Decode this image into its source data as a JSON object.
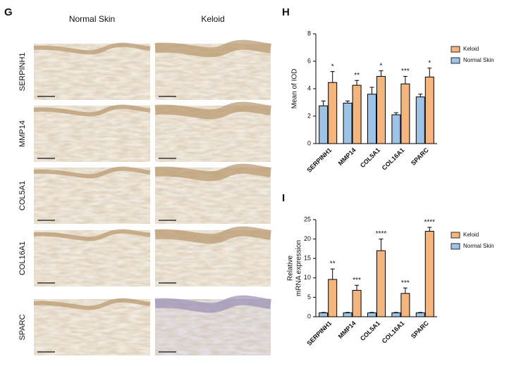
{
  "figure": {
    "panel_labels": [
      "G",
      "H",
      "I"
    ],
    "column_headers": [
      "Normal Skin",
      "Keloid"
    ],
    "row_labels": [
      "SERPINH1",
      "MMP14",
      "COL5A1",
      "COL16A1",
      "SPARC"
    ]
  },
  "chart_data": [
    {
      "type": "bar",
      "ylabel": [
        "Mean of IOD"
      ],
      "categories": [
        "SERPINH1",
        "MMP14",
        "COL5A1",
        "COL16A1",
        "SPARC"
      ],
      "series": [
        {
          "name": "Keloid",
          "color": "#f5b57e",
          "values": [
            4.45,
            4.25,
            4.9,
            4.35,
            4.85
          ],
          "errors": [
            0.8,
            0.35,
            0.4,
            0.55,
            0.65
          ]
        },
        {
          "name": "Normal Skin",
          "color": "#9dc3e6",
          "values": [
            2.75,
            2.95,
            3.6,
            2.1,
            3.4
          ],
          "errors": [
            0.35,
            0.15,
            0.5,
            0.15,
            0.2
          ]
        }
      ],
      "annotations": [
        "*",
        "**",
        "*",
        "***",
        "*"
      ],
      "ylim": [
        0,
        8
      ],
      "yticks": [
        0,
        2,
        4,
        6,
        8
      ]
    },
    {
      "type": "bar",
      "ylabel": [
        "Relative",
        "mRNA expression"
      ],
      "categories": [
        "SERPINH1",
        "MMP14",
        "COL5A1",
        "COL16A1",
        "SPARC"
      ],
      "series": [
        {
          "name": "Keloid",
          "color": "#f5b57e",
          "values": [
            9.6,
            6.8,
            17,
            6.0,
            22
          ],
          "errors": [
            2.7,
            1.3,
            3,
            1.4,
            1
          ]
        },
        {
          "name": "Normal Skin",
          "color": "#9dc3e6",
          "values": [
            1,
            1,
            1,
            1,
            1
          ],
          "errors": [
            0.1,
            0.1,
            0.1,
            0.1,
            0.1
          ]
        }
      ],
      "annotations": [
        "**",
        "***",
        "****",
        "***",
        "****"
      ],
      "ylim": [
        0,
        25
      ],
      "yticks": [
        0,
        5,
        10,
        15,
        20,
        25
      ]
    }
  ]
}
